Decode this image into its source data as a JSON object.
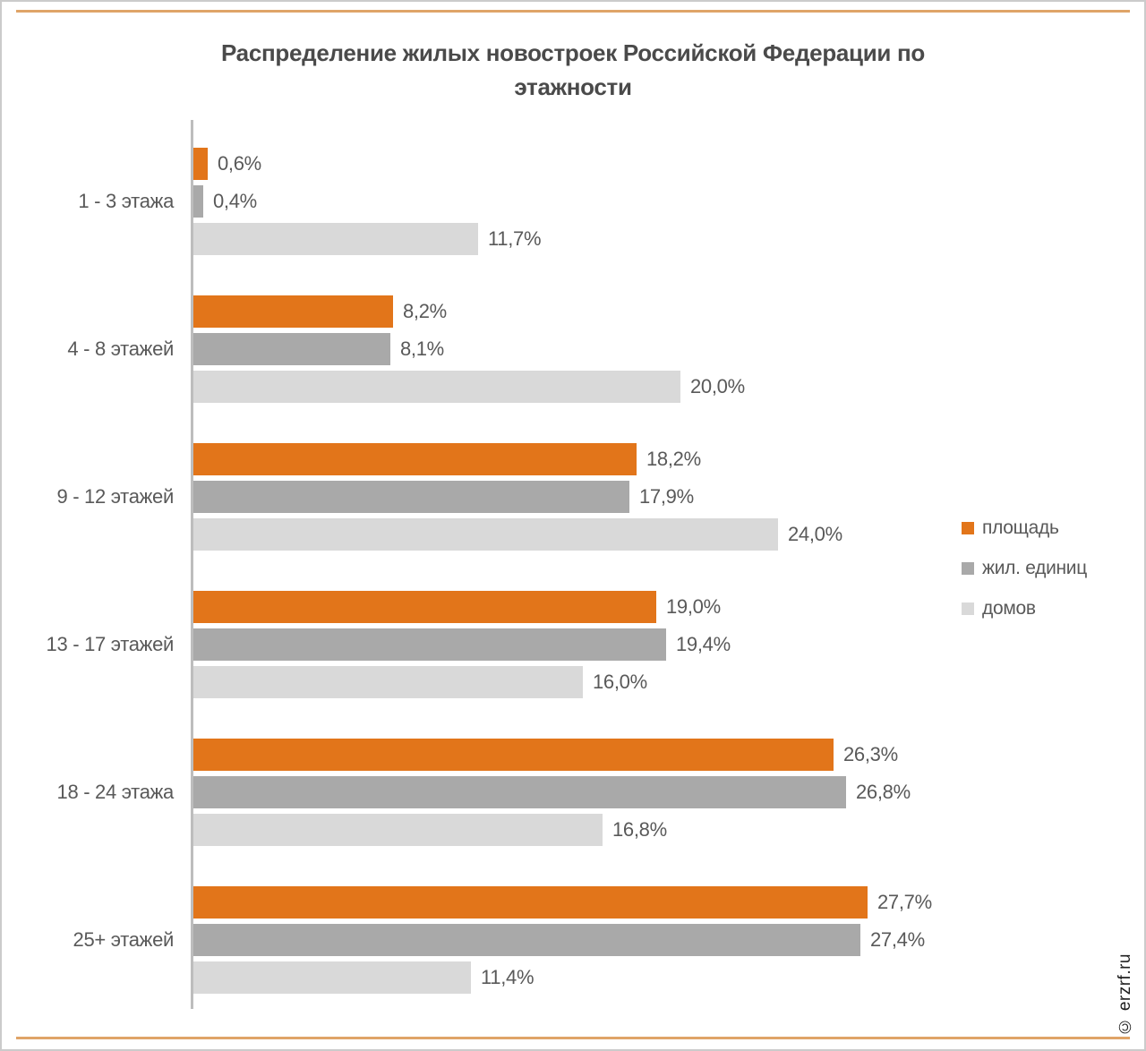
{
  "page": {
    "watermark": "© erzrf.ru",
    "border_color": "#cbcbcb",
    "rule_color": "#dfa468",
    "background": "#ffffff"
  },
  "chart_data": {
    "type": "bar",
    "orientation": "horizontal",
    "title": "Распределение жилых новостроек Российской Федерации по этажности",
    "categories": [
      "1 - 3 этажа",
      "4 - 8 этажей",
      "9 - 12 этажей",
      "13 - 17 этажей",
      "18 - 24 этажа",
      "25+ этажей"
    ],
    "series": [
      {
        "key": "area",
        "name": "площадь",
        "color": "#e2751a",
        "values": [
          0.6,
          8.2,
          18.2,
          19.0,
          26.3,
          27.7
        ],
        "labels": [
          "0,6%",
          "8,2%",
          "18,2%",
          "19,0%",
          "26,3%",
          "27,7%"
        ]
      },
      {
        "key": "units",
        "name": "жил. единиц",
        "color": "#a9a9a9",
        "values": [
          0.4,
          8.1,
          17.9,
          19.4,
          26.8,
          27.4
        ],
        "labels": [
          "0,4%",
          "8,1%",
          "17,9%",
          "19,4%",
          "26,8%",
          "27,4%"
        ]
      },
      {
        "key": "houses",
        "name": "домов",
        "color": "#d9d9d9",
        "values": [
          11.7,
          20.0,
          24.0,
          16.0,
          16.8,
          11.4
        ],
        "labels": [
          "11,7%",
          "20,0%",
          "24,0%",
          "16,0%",
          "16,8%",
          "11,4%"
        ]
      }
    ],
    "value_suffix": "%",
    "xlim": [
      0,
      31
    ],
    "grid": false,
    "legend_position": "right",
    "axis_color": "#bdbdbd",
    "label_color": "#595959",
    "title_color": "#4a4a4a"
  }
}
